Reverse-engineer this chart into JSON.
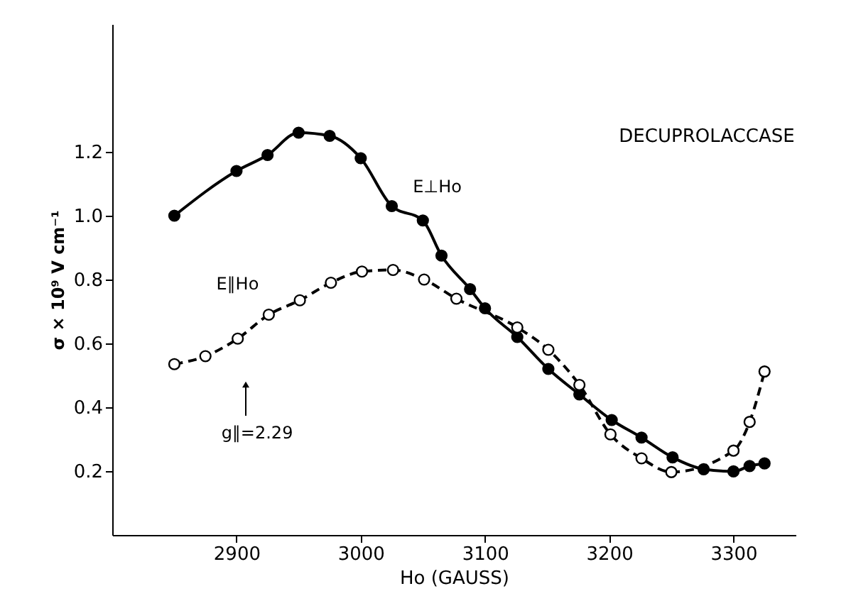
{
  "chart_data": {
    "type": "line",
    "title": "DECUPROLACCASE",
    "xlabel": "Ho (GAUSS)",
    "ylabel": "σ × 10⁹ V cm⁻¹",
    "xlim": [
      2800,
      3350
    ],
    "ylim": [
      0,
      1.6
    ],
    "xticks": [
      2900,
      3000,
      3100,
      3200,
      3300
    ],
    "yticks": [
      0.2,
      0.4,
      0.6,
      0.8,
      {
        "value": 1,
        "label": "1.0"
      },
      1.2
    ],
    "grid": false,
    "marker": "circle",
    "series": [
      {
        "name": "E⊥Ho",
        "color": "#000000",
        "line_style": "solid",
        "x": [
          2850,
          2900,
          2925,
          2950,
          2975,
          3000,
          3025,
          3050,
          3065,
          3088,
          3100,
          3126,
          3151,
          3176,
          3202,
          3226,
          3251,
          3276,
          3300,
          3313,
          3325
        ],
        "values": [
          1.0,
          1.14,
          1.19,
          1.26,
          1.25,
          1.18,
          1.03,
          0.985,
          0.875,
          0.77,
          0.71,
          0.62,
          0.52,
          0.44,
          0.36,
          0.305,
          0.243,
          0.206,
          0.199,
          0.216,
          0.224
        ]
      },
      {
        "name": "E∥Ho",
        "color": "#000000",
        "line_style": "dashed",
        "x": [
          2850,
          2875,
          2901,
          2926,
          2951,
          2976,
          3001,
          3026,
          3051,
          3077,
          3126,
          3151,
          3176,
          3201,
          3226,
          3250,
          3300,
          3313,
          3325
        ],
        "values": [
          0.535,
          0.56,
          0.615,
          0.69,
          0.735,
          0.79,
          0.825,
          0.83,
          0.8,
          0.74,
          0.65,
          0.58,
          0.47,
          0.315,
          0.24,
          0.197,
          0.264,
          0.354,
          0.512
        ]
      }
    ],
    "annotations": [
      "g∥=2.29"
    ]
  }
}
